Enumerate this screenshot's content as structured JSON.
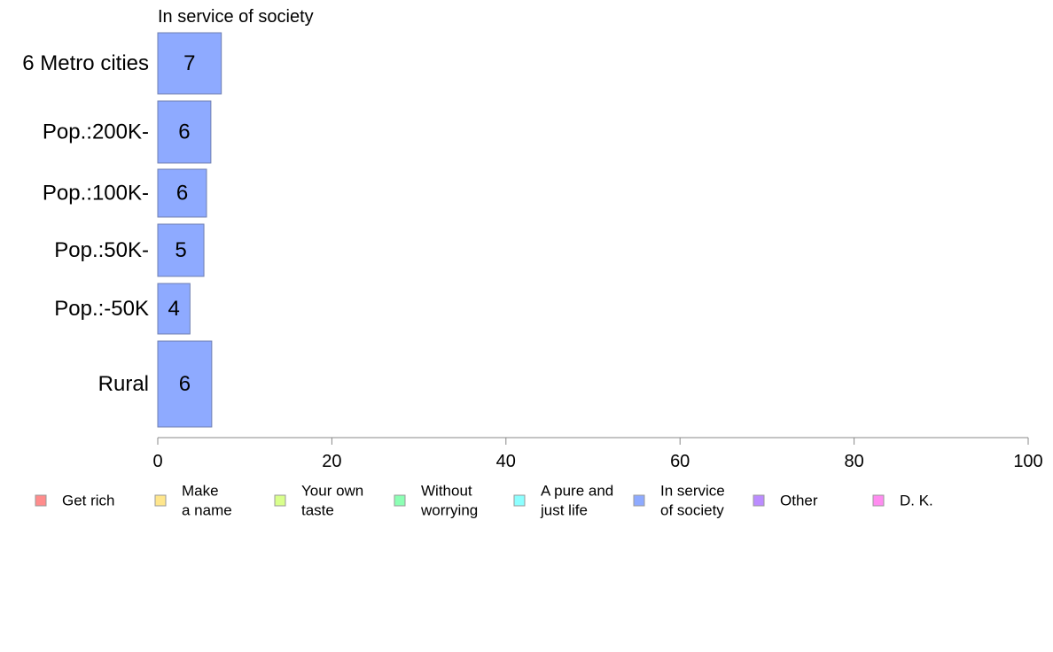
{
  "chart_data": {
    "type": "bar",
    "orientation": "horizontal",
    "title": "In service of society",
    "categories": [
      "6 Metro cities",
      "Pop.:200K-",
      "Pop.:100K-",
      "Pop.:50K-",
      "Pop.:-50K",
      "Rural"
    ],
    "series": [
      {
        "name": "In service of society",
        "values": [
          7.3,
          6.1,
          5.6,
          5.3,
          3.7,
          6.2
        ],
        "labels": [
          "7",
          "6",
          "6",
          "5",
          "4",
          "6"
        ],
        "color": "#8eaaff"
      }
    ],
    "xlim": [
      0,
      100
    ],
    "xticks": [
      "0",
      "20",
      "40",
      "60",
      "80",
      "100"
    ],
    "grid": false,
    "legend_position": "bottom",
    "legend": [
      {
        "lines": [
          "Get rich"
        ],
        "color": "#ff8c8c"
      },
      {
        "lines": [
          "Make",
          "a name"
        ],
        "color": "#ffe68c"
      },
      {
        "lines": [
          "Your own",
          "taste"
        ],
        "color": "#d9ff8c"
      },
      {
        "lines": [
          "Without",
          "worrying"
        ],
        "color": "#8cffb4"
      },
      {
        "lines": [
          "A pure and",
          "just life"
        ],
        "color": "#8cffff"
      },
      {
        "lines": [
          "In service",
          "of society"
        ],
        "color": "#8eaaff"
      },
      {
        "lines": [
          "Other"
        ],
        "color": "#bb8cff"
      },
      {
        "lines": [
          "D. K."
        ],
        "color": "#ff8cf0"
      }
    ]
  }
}
